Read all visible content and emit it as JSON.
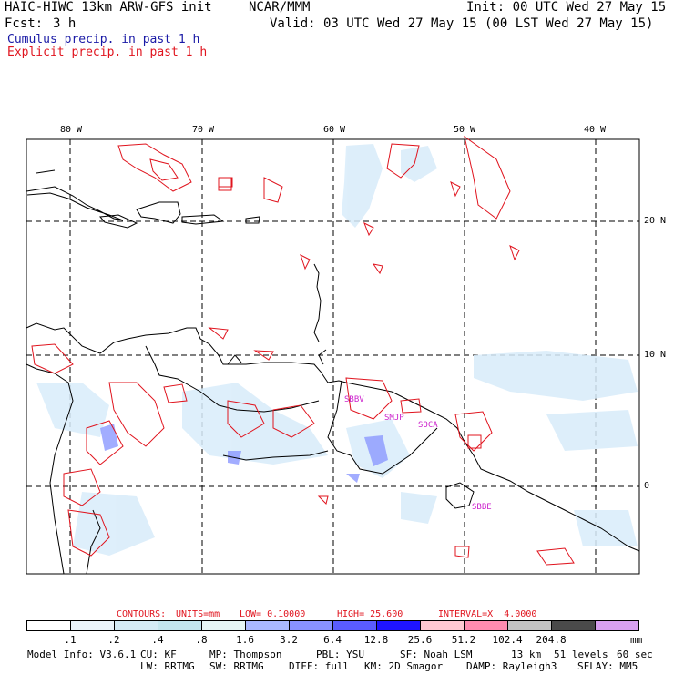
{
  "header": {
    "model": "HAIC-HIWC 13km ARW-GFS init",
    "org": "NCAR/MMM",
    "init": "Init: 00 UTC Wed 27 May 15",
    "fcst_label": "Fcst:",
    "fcst_value": "3 h",
    "valid": "Valid: 03 UTC Wed 27 May 15 (00 LST Wed 27 May 15)",
    "legend_cumulus": "Cumulus precip. in past 1 h",
    "legend_explicit": "Explicit precip. in past 1 h"
  },
  "colors": {
    "cumulus": "#1a1aa6",
    "explicit": "#e0141e",
    "station": "#cc22cc"
  },
  "map": {
    "lon_labels": [
      "80 W",
      "70 W",
      "60 W",
      "50 W",
      "40 W"
    ],
    "lat_labels": [
      "20 N",
      "10 N",
      "0"
    ],
    "stations": [
      "SBBV",
      "SMJP",
      "SOCA",
      "SBBE"
    ]
  },
  "contour_info": {
    "label": "CONTOURS:",
    "units": "UNITS=mm",
    "low": "LOW= 0.10000",
    "high": "HIGH= 25.600",
    "interval": "INTERVAL=X  4.0000"
  },
  "colorbar": {
    "ticks": [
      ".1",
      ".2",
      ".4",
      ".8",
      "1.6",
      "3.2",
      "6.4",
      "12.8",
      "25.6",
      "51.2",
      "102.4",
      "204.8"
    ],
    "colors": [
      "#ffffff",
      "#eaf4fb",
      "#d4ebf6",
      "#c4e6ef",
      "#e6f6f6",
      "#a9b8ff",
      "#8892ff",
      "#5a5cff",
      "#1e14ff",
      "#ffc8d2",
      "#ff8cb0",
      "#c4c4c4",
      "#4a4a4a",
      "#d8a0f0"
    ],
    "unit": "mm"
  },
  "footer": {
    "line1": [
      "Model Info: V3.6.1",
      "CU: KF",
      "MP: Thompson",
      "PBL: YSU",
      "SF: Noah LSM",
      "13 km",
      "51 levels",
      "60 sec"
    ],
    "line2": [
      "LW: RRTMG",
      "SW: RRTMG",
      "DIFF: full",
      "KM: 2D Smagor",
      "DAMP: Rayleigh3",
      "SFLAY: MM5"
    ]
  }
}
